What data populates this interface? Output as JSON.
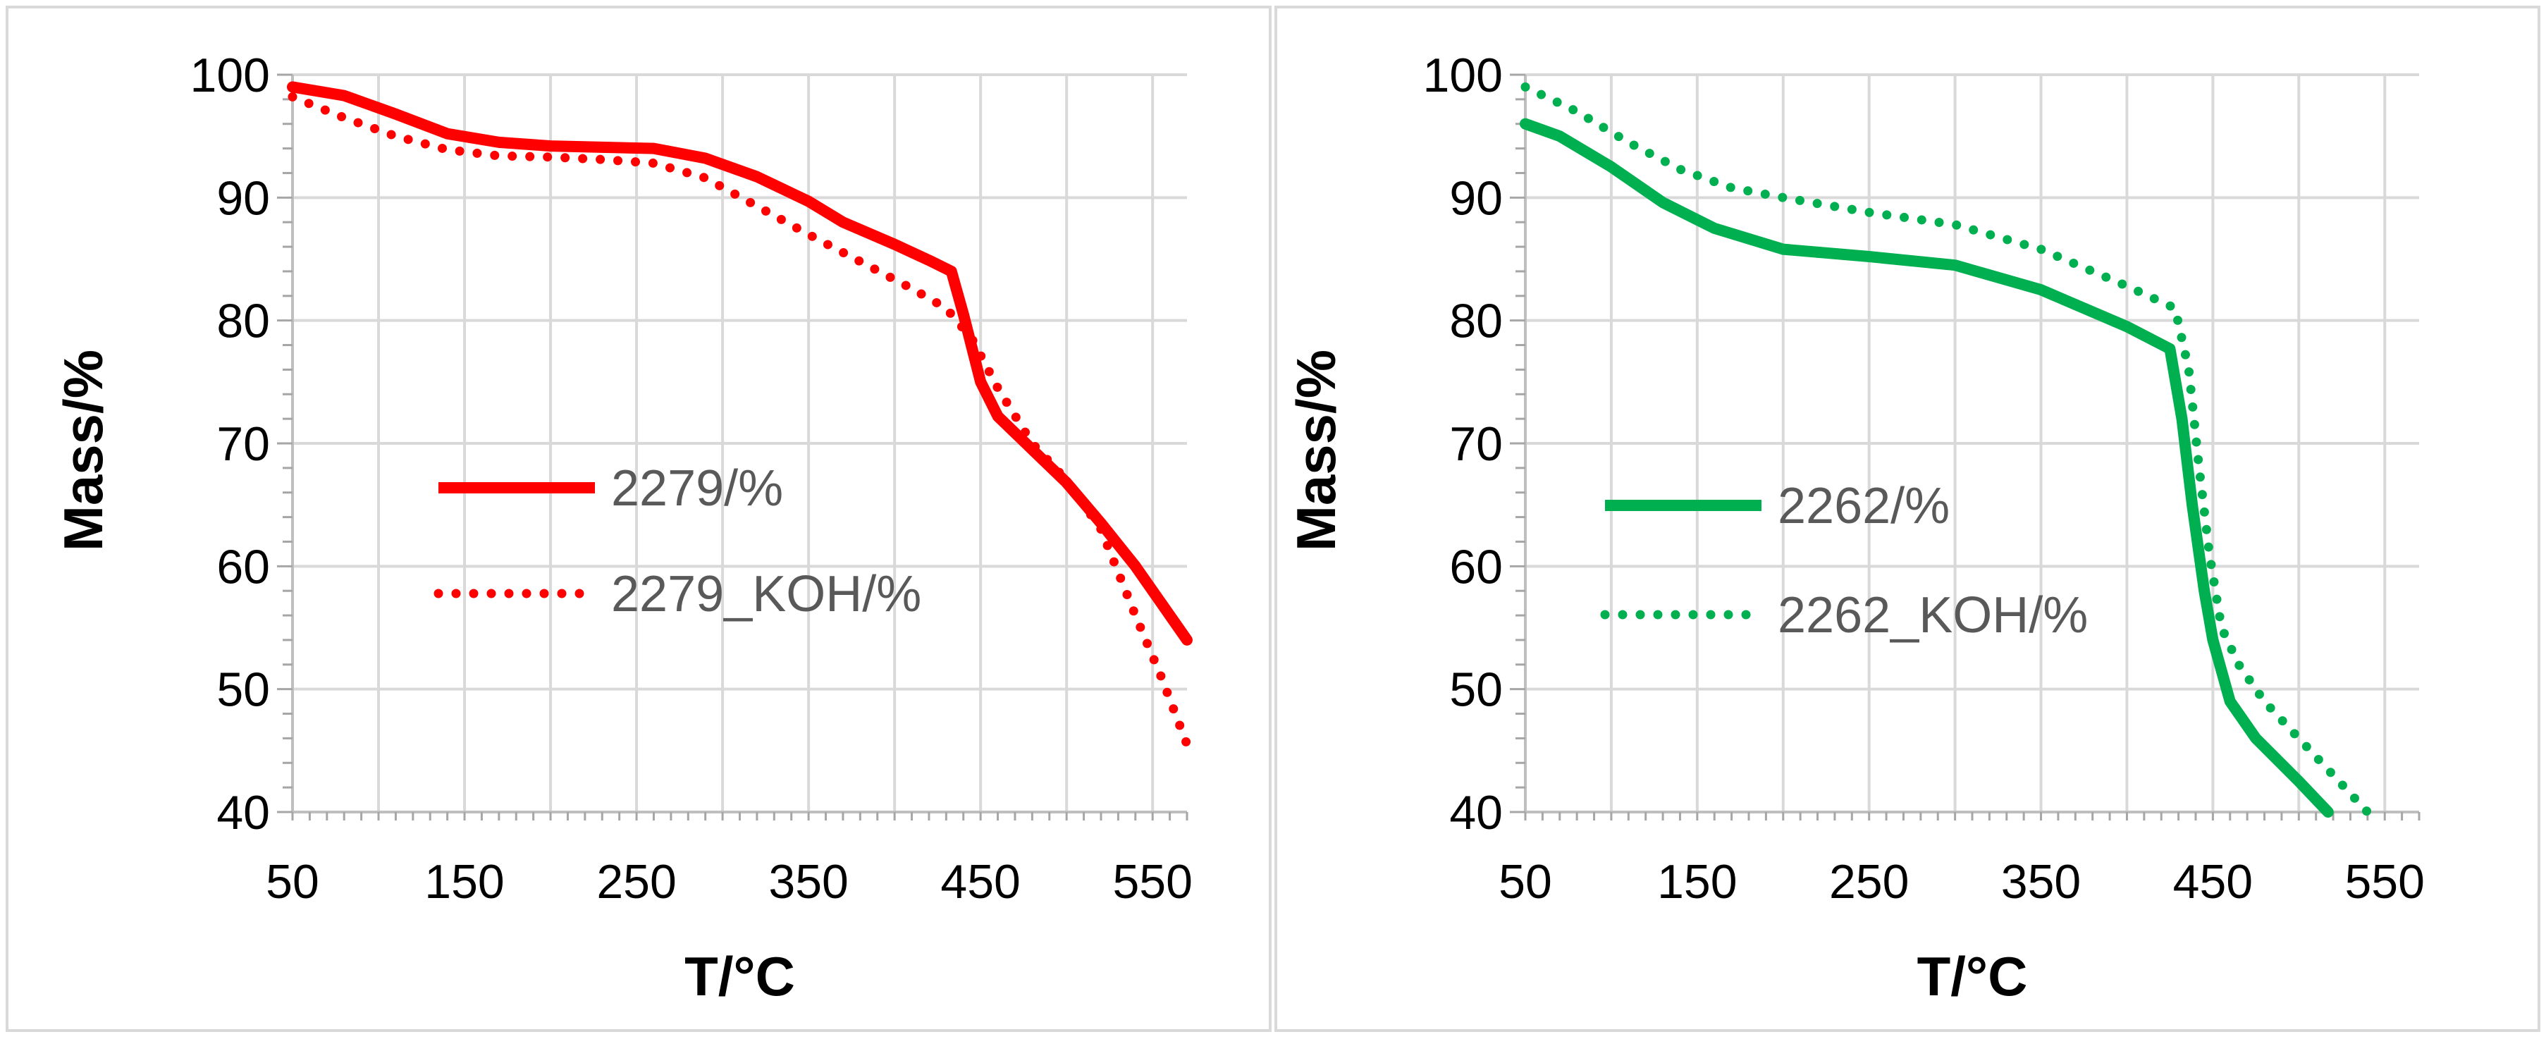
{
  "colors": {
    "red": "#ff0000",
    "green": "#00b050",
    "grid": "#d9d9d9",
    "tick": "#000000"
  },
  "chart_data": [
    {
      "type": "line",
      "xlabel": "T/°C",
      "ylabel": "Mass/%",
      "xlim": [
        50,
        570
      ],
      "ylim": [
        40,
        100
      ],
      "xticks": [
        50,
        150,
        250,
        350,
        450,
        550
      ],
      "yticks": [
        40,
        50,
        60,
        70,
        80,
        90,
        100
      ],
      "legend_position": "center-left",
      "series": [
        {
          "name": "2279/%",
          "color": "#ff0000",
          "style": "solid",
          "x": [
            50,
            80,
            110,
            140,
            170,
            200,
            230,
            260,
            290,
            320,
            350,
            370,
            400,
            420,
            433,
            440,
            450,
            460,
            480,
            500,
            520,
            540,
            555,
            570
          ],
          "y": [
            99,
            98.3,
            96.8,
            95.2,
            94.5,
            94.2,
            94.1,
            94,
            93.2,
            91.7,
            89.7,
            88,
            86.2,
            84.9,
            84,
            80.5,
            75,
            72.2,
            69.5,
            66.8,
            63.5,
            60,
            57,
            54
          ]
        },
        {
          "name": "2279_KOH/%",
          "color": "#ff0000",
          "style": "dotted",
          "x": [
            50,
            80,
            110,
            140,
            170,
            200,
            230,
            260,
            290,
            320,
            350,
            380,
            410,
            430,
            445,
            460,
            480,
            500,
            520,
            540,
            555,
            570
          ],
          "y": [
            98.2,
            96.5,
            95,
            93.9,
            93.4,
            93.3,
            93.1,
            92.8,
            91.6,
            89.3,
            87,
            84.8,
            82.6,
            81,
            78.5,
            74.5,
            70,
            67,
            63,
            56,
            51,
            45.5
          ]
        }
      ]
    },
    {
      "type": "line",
      "xlabel": "T/°C",
      "ylabel": "Mass/%",
      "xlim": [
        50,
        570
      ],
      "ylim": [
        40,
        100
      ],
      "xticks": [
        50,
        150,
        250,
        350,
        450,
        550
      ],
      "yticks": [
        40,
        50,
        60,
        70,
        80,
        90,
        100
      ],
      "legend_position": "center-left",
      "series": [
        {
          "name": "2262/%",
          "color": "#00b050",
          "style": "solid",
          "x": [
            50,
            70,
            100,
            130,
            160,
            200,
            250,
            300,
            350,
            400,
            425,
            432,
            438,
            445,
            450,
            460,
            475,
            500,
            517
          ],
          "y": [
            96,
            95,
            92.5,
            89.6,
            87.5,
            85.8,
            85.2,
            84.5,
            82.5,
            79.5,
            77.7,
            72,
            65,
            58,
            54,
            49,
            46,
            42.5,
            40
          ]
        },
        {
          "name": "2262_KOH/%",
          "color": "#00b050",
          "style": "dotted",
          "x": [
            50,
            80,
            110,
            140,
            170,
            200,
            250,
            300,
            350,
            400,
            428,
            436,
            442,
            448,
            455,
            465,
            480,
            500,
            520,
            540
          ],
          "y": [
            99,
            97,
            94.5,
            92.3,
            90.8,
            90,
            88.8,
            87.8,
            85.8,
            82.8,
            81,
            76,
            68,
            61,
            55,
            52,
            49,
            46,
            43,
            40
          ]
        }
      ]
    }
  ]
}
